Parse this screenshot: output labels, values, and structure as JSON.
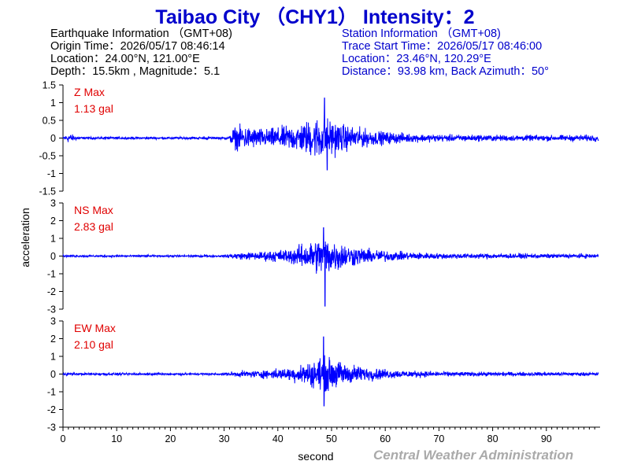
{
  "title": "Taibao City （CHY1） Intensity：2",
  "earthquake": {
    "heading": "Earthquake Information （GMT+08)",
    "origin_time": "Origin Time：2026/05/17 08:46:14",
    "location": "Location：24.00°N, 121.00°E",
    "depth_magnitude": "Depth：15.5km , Magnitude：5.1"
  },
  "station": {
    "heading": "Station Information （GMT+08)",
    "trace_start": "Trace Start Time：2026/05/17 08:46:00",
    "location": "Location：23.46°N, 120.29°E",
    "distance": "Distance：93.98 km, Back Azimuth：50°"
  },
  "credit": "Central Weather Administration",
  "colors": {
    "title": "#0000cc",
    "trace": "#0000ff",
    "max_label": "#e00000",
    "credit": "#aaaaaa"
  },
  "chart_data": {
    "type": "line",
    "xlabel": "second",
    "ylabel": "acceleration",
    "xlim": [
      0,
      100
    ],
    "x_ticks": [
      0,
      10,
      20,
      30,
      40,
      50,
      60,
      70,
      80,
      90
    ],
    "x_tick_labels": [
      "0",
      "10",
      "20",
      "30",
      "40",
      "50",
      "60",
      "70",
      "80",
      "90"
    ],
    "grid": false,
    "series": [
      {
        "name": "Z",
        "max_label": "Z Max",
        "max_value": "1.13 gal",
        "ylim": [
          -1.5,
          1.5
        ],
        "y_ticks": [
          -1.5,
          -1,
          -0.5,
          0,
          0.5,
          1,
          1.5
        ],
        "y_tick_labels": [
          "-1.5",
          "-1",
          "-0.5",
          "0",
          "0.5",
          "1",
          "1.5"
        ],
        "peak": {
          "t": 48.7,
          "value": 1.13
        },
        "min": {
          "t": 49.2,
          "value": -0.9
        },
        "envelope_t": [
          0,
          1,
          3,
          31,
          31.5,
          33,
          38,
          44,
          48,
          50,
          53,
          58,
          65,
          75,
          90,
          99.7
        ],
        "envelope_amp": [
          0.02,
          0.12,
          0.03,
          0.03,
          0.25,
          0.3,
          0.22,
          0.35,
          0.55,
          0.45,
          0.3,
          0.18,
          0.1,
          0.08,
          0.07,
          0.08
        ]
      },
      {
        "name": "NS",
        "max_label": "NS Max",
        "max_value": "2.83 gal",
        "ylim": [
          -3,
          3
        ],
        "y_ticks": [
          -3,
          -2,
          -1,
          0,
          1,
          2,
          3
        ],
        "y_tick_labels": [
          "-3",
          "-2",
          "-1",
          "0",
          "1",
          "2",
          "3"
        ],
        "peak": {
          "t": 48.5,
          "value": 1.6
        },
        "min": {
          "t": 48.8,
          "value": -2.83
        },
        "envelope_t": [
          0,
          30,
          31.5,
          36,
          42,
          46,
          48.5,
          50,
          53,
          57,
          62,
          70,
          80,
          99.7
        ],
        "envelope_amp": [
          0.05,
          0.05,
          0.15,
          0.2,
          0.35,
          0.7,
          1.0,
          0.85,
          0.55,
          0.35,
          0.22,
          0.14,
          0.12,
          0.1
        ]
      },
      {
        "name": "EW",
        "max_label": "EW Max",
        "max_value": "2.10 gal",
        "ylim": [
          -3,
          3
        ],
        "y_ticks": [
          -3,
          -2,
          -1,
          0,
          1,
          2,
          3
        ],
        "y_tick_labels": [
          "-3",
          "-2",
          "-1",
          "0",
          "1",
          "2",
          "3"
        ],
        "peak": {
          "t": 48.5,
          "value": 2.1
        },
        "min": {
          "t": 48.6,
          "value": -1.8
        },
        "envelope_t": [
          0,
          30,
          31.5,
          36,
          42,
          46,
          48.5,
          50,
          53,
          57,
          62,
          70,
          80,
          99.7
        ],
        "envelope_amp": [
          0.06,
          0.05,
          0.12,
          0.18,
          0.3,
          0.6,
          0.85,
          0.75,
          0.5,
          0.32,
          0.2,
          0.12,
          0.1,
          0.08
        ]
      }
    ]
  }
}
